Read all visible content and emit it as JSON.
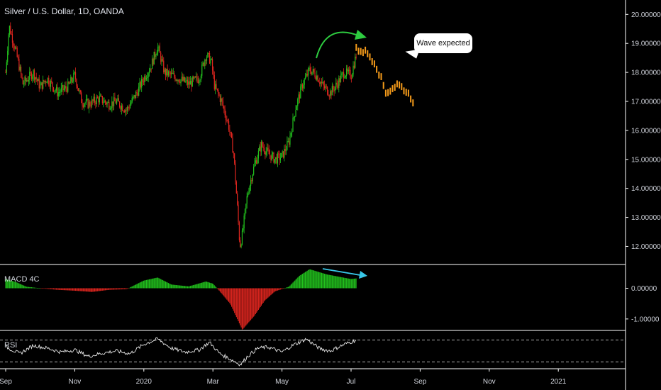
{
  "header": {
    "title": "Silver / U.S. Dollar, 1D, OANDA"
  },
  "annotation": {
    "callout_text": "Wave expected"
  },
  "panes": {
    "macd_label": "MACD 4C",
    "rsi_label": "RSI"
  },
  "colors": {
    "up": "#22c21d",
    "down": "#e0261f",
    "projection": "#f59b1a",
    "arrow_green": "#2ecc40",
    "arrow_cyan": "#38c7e8",
    "grid_line": "#ffffff",
    "rsi_line": "#e8e8e8"
  },
  "chart_data": [
    {
      "type": "candlestick",
      "title": "Silver / U.S. Dollar, 1D, OANDA",
      "y_ticks": [
        12,
        13,
        14,
        15,
        16,
        17,
        18,
        19,
        20
      ],
      "y_tick_labels": [
        "12.00000",
        "13.00000",
        "14.00000",
        "15.00000",
        "16.00000",
        "17.00000",
        "18.00000",
        "19.00000",
        "20.00000"
      ],
      "ylim": [
        11.4,
        20.35
      ],
      "x_tick_labels": [
        "Sep",
        "Nov",
        "2020",
        "Mar",
        "May",
        "Jul",
        "Sep",
        "Nov",
        "2021"
      ],
      "x_tick_months": [
        0,
        2,
        4,
        6,
        8,
        10,
        12,
        14,
        16
      ],
      "close_path": [
        [
          0.0,
          18.0
        ],
        [
          0.1,
          19.6
        ],
        [
          0.3,
          18.7
        ],
        [
          0.5,
          17.6
        ],
        [
          0.8,
          18.0
        ],
        [
          1.0,
          17.5
        ],
        [
          1.2,
          17.8
        ],
        [
          1.5,
          17.3
        ],
        [
          1.8,
          17.5
        ],
        [
          2.0,
          17.9
        ],
        [
          2.2,
          17.0
        ],
        [
          2.4,
          16.9
        ],
        [
          2.7,
          17.1
        ],
        [
          3.0,
          16.9
        ],
        [
          3.2,
          17.0
        ],
        [
          3.5,
          16.7
        ],
        [
          3.8,
          17.3
        ],
        [
          4.0,
          17.8
        ],
        [
          4.2,
          18.2
        ],
        [
          4.4,
          18.9
        ],
        [
          4.6,
          18.0
        ],
        [
          4.8,
          17.9
        ],
        [
          5.0,
          17.8
        ],
        [
          5.3,
          17.6
        ],
        [
          5.6,
          17.8
        ],
        [
          5.8,
          18.6
        ],
        [
          5.95,
          18.4
        ],
        [
          6.05,
          17.5
        ],
        [
          6.25,
          17.0
        ],
        [
          6.45,
          16.2
        ],
        [
          6.6,
          15.2
        ],
        [
          6.7,
          13.5
        ],
        [
          6.78,
          12.0
        ],
        [
          6.85,
          12.4
        ],
        [
          7.0,
          13.8
        ],
        [
          7.2,
          14.8
        ],
        [
          7.4,
          15.5
        ],
        [
          7.6,
          15.2
        ],
        [
          7.8,
          15.0
        ],
        [
          8.0,
          15.1
        ],
        [
          8.2,
          15.6
        ],
        [
          8.4,
          16.8
        ],
        [
          8.6,
          17.6
        ],
        [
          8.8,
          18.1
        ],
        [
          9.0,
          17.9
        ],
        [
          9.2,
          17.5
        ],
        [
          9.4,
          17.3
        ],
        [
          9.6,
          17.6
        ],
        [
          9.8,
          18.0
        ],
        [
          10.0,
          17.9
        ],
        [
          10.15,
          18.6
        ]
      ],
      "projection": [
        [
          10.15,
          18.8
        ],
        [
          10.45,
          18.7
        ],
        [
          10.7,
          18.3
        ],
        [
          10.9,
          17.7
        ],
        [
          11.0,
          17.3
        ],
        [
          11.15,
          17.4
        ],
        [
          11.35,
          17.6
        ],
        [
          11.55,
          17.4
        ],
        [
          11.7,
          17.2
        ],
        [
          11.8,
          17.0
        ]
      ]
    },
    {
      "type": "bar",
      "title": "MACD 4C",
      "y_ticks": [
        0,
        -1
      ],
      "y_tick_labels": [
        "0.00000",
        "-1.00000"
      ],
      "ylim": [
        -1.35,
        0.75
      ],
      "histogram_path": [
        [
          0.0,
          0.3
        ],
        [
          0.3,
          0.2
        ],
        [
          0.6,
          0.05
        ],
        [
          1.0,
          0.0
        ],
        [
          1.5,
          -0.05
        ],
        [
          2.0,
          -0.08
        ],
        [
          2.5,
          -0.12
        ],
        [
          3.0,
          -0.05
        ],
        [
          3.5,
          -0.03
        ],
        [
          4.0,
          0.25
        ],
        [
          4.4,
          0.35
        ],
        [
          4.8,
          0.12
        ],
        [
          5.3,
          0.06
        ],
        [
          5.8,
          0.22
        ],
        [
          6.0,
          0.15
        ],
        [
          6.2,
          -0.1
        ],
        [
          6.5,
          -0.5
        ],
        [
          6.85,
          -1.35
        ],
        [
          7.2,
          -0.9
        ],
        [
          7.5,
          -0.4
        ],
        [
          7.8,
          -0.1
        ],
        [
          8.2,
          0.05
        ],
        [
          8.5,
          0.4
        ],
        [
          8.8,
          0.62
        ],
        [
          9.3,
          0.45
        ],
        [
          10.0,
          0.3
        ],
        [
          10.15,
          0.32
        ]
      ]
    },
    {
      "type": "line",
      "title": "RSI",
      "ylim": [
        20,
        85
      ],
      "bands": [
        70,
        30
      ],
      "values_path": [
        [
          0.0,
          58
        ],
        [
          0.4,
          45
        ],
        [
          0.8,
          60
        ],
        [
          1.2,
          55
        ],
        [
          1.6,
          48
        ],
        [
          2.0,
          52
        ],
        [
          2.4,
          40
        ],
        [
          2.8,
          46
        ],
        [
          3.2,
          50
        ],
        [
          3.6,
          45
        ],
        [
          4.0,
          62
        ],
        [
          4.4,
          72
        ],
        [
          4.8,
          55
        ],
        [
          5.2,
          48
        ],
        [
          5.6,
          52
        ],
        [
          5.9,
          66
        ],
        [
          6.2,
          45
        ],
        [
          6.5,
          35
        ],
        [
          6.8,
          25
        ],
        [
          7.0,
          40
        ],
        [
          7.3,
          55
        ],
        [
          7.6,
          57
        ],
        [
          8.0,
          48
        ],
        [
          8.3,
          60
        ],
        [
          8.7,
          72
        ],
        [
          9.1,
          54
        ],
        [
          9.4,
          50
        ],
        [
          9.8,
          62
        ],
        [
          10.15,
          70
        ]
      ]
    }
  ]
}
